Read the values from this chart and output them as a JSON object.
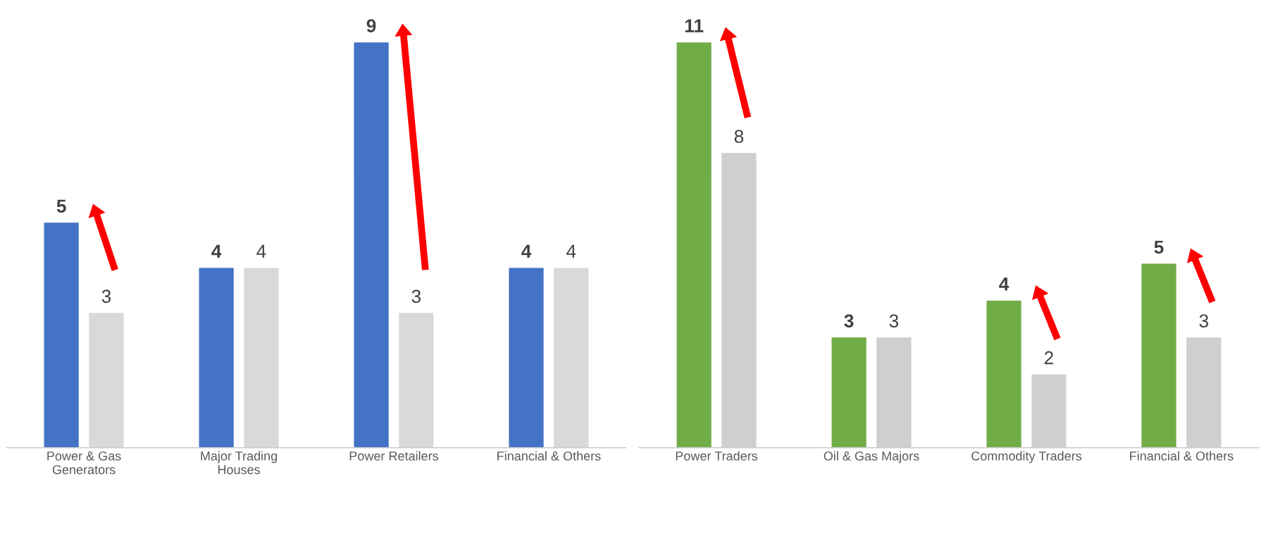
{
  "chart_data": [
    {
      "type": "bar",
      "categories": [
        "Power & Gas\nGenerators",
        "Major Trading\nHouses",
        "Power Retailers",
        "Financial & Others"
      ],
      "series": [
        {
          "color": "#4472c4",
          "values": [
            5,
            4,
            9,
            4
          ]
        },
        {
          "color": "#d9d9d9",
          "values": [
            3,
            4,
            3,
            4
          ]
        }
      ],
      "data_labels": true,
      "tick_labels": "x",
      "grid": false,
      "legend": false
    },
    {
      "type": "bar",
      "categories": [
        "Power Traders",
        "Oil & Gas Majors",
        "Commodity Traders",
        "Financial & Others"
      ],
      "series": [
        {
          "color": "#70ad47",
          "values": [
            11,
            3,
            4,
            5
          ]
        },
        {
          "color": "#d0cece",
          "values": [
            8,
            3,
            2,
            3
          ]
        }
      ],
      "data_labels": true,
      "tick_labels": "x",
      "grid": false,
      "legend": false
    }
  ]
}
